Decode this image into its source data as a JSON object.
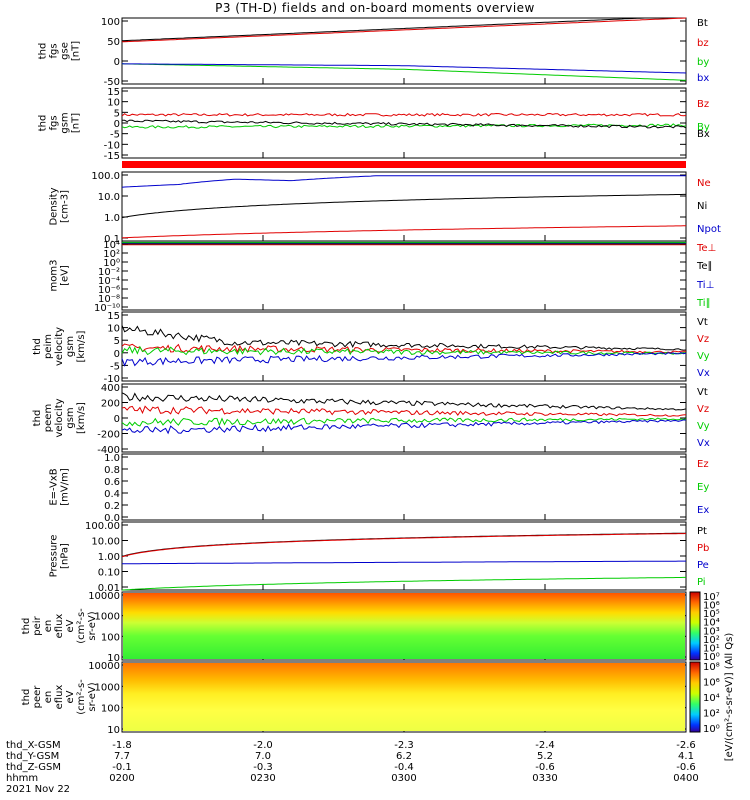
{
  "title": "P3 (TH-D) fields and on-board moments overview",
  "colors": {
    "black": "#000000",
    "red": "#e00000",
    "green": "#00cc00",
    "blue": "#0000cc",
    "band": "#ff0000"
  },
  "chart_data": [
    {
      "type": "line",
      "ylabel": [
        "thd",
        "fgs",
        "gse",
        "[nT]"
      ],
      "yticks": [
        "100",
        "50",
        "0",
        "-50"
      ],
      "ylim": [
        -80,
        100
      ],
      "series": [
        {
          "name": "Bt",
          "color": "#000000",
          "x": [
            0,
            1
          ],
          "y": [
            38,
            105
          ]
        },
        {
          "name": "bz",
          "color": "#e00000",
          "x": [
            0,
            1
          ],
          "y": [
            35,
            100
          ]
        },
        {
          "name": "by",
          "color": "#00cc00",
          "x": [
            0,
            0.5,
            1
          ],
          "y": [
            -25,
            -40,
            -70
          ]
        },
        {
          "name": "bx",
          "color": "#0000cc",
          "x": [
            0,
            0.5,
            1
          ],
          "y": [
            -25,
            -30,
            -50
          ]
        }
      ]
    },
    {
      "type": "line",
      "ylabel": [
        "thd",
        "fgs",
        "gsm",
        "[nT]"
      ],
      "yticks": [
        "15",
        "10",
        "5",
        "0",
        "-5",
        "-10",
        "-15"
      ],
      "ylim": [
        -18,
        16
      ],
      "series": [
        {
          "name": "Bz",
          "color": "#e00000",
          "x": [
            0,
            1
          ],
          "y": [
            3,
            3
          ]
        },
        {
          "name": "By",
          "color": "#00cc00",
          "x": [
            0,
            1
          ],
          "y": [
            -3,
            -2
          ]
        },
        {
          "name": "Bx",
          "color": "#000000",
          "x": [
            0,
            1
          ],
          "y": [
            0,
            -3
          ]
        }
      ]
    },
    {
      "type": "line",
      "ylabel": [
        "Density",
        "[cm-3]"
      ],
      "yticks": [
        "100.0",
        "10.0",
        "1.0",
        "0.1"
      ],
      "ylim": [
        0.1,
        150
      ],
      "log": true,
      "series": [
        {
          "name": "Ne",
          "color": "#e00000",
          "x": [
            0,
            1
          ],
          "y": [
            0.14,
            0.5
          ]
        },
        {
          "name": "Ni",
          "color": "#000000",
          "x": [
            0,
            1
          ],
          "y": [
            1.2,
            14
          ]
        },
        {
          "name": "Npot",
          "color": "#0000cc",
          "x": [
            0,
            0.1,
            0.2,
            0.3,
            0.45
          ],
          "y": [
            30,
            40,
            70,
            60,
            100
          ]
        }
      ]
    },
    {
      "type": "line",
      "ylabel": [
        "mom3",
        "[eV]"
      ],
      "yticks": [
        "10⁴",
        "10²",
        "10⁰",
        "10⁻²",
        "10⁻⁴",
        "10⁻⁶",
        "10⁻⁸",
        "10⁻¹⁰"
      ],
      "ylim": [
        -10,
        4.5
      ],
      "series": [
        {
          "name": "Te⊥",
          "color": "#e00000",
          "x": [
            0,
            1
          ],
          "y": [
            3.7,
            3.7
          ]
        },
        {
          "name": "Te∥",
          "color": "#000000",
          "x": [
            0,
            1
          ],
          "y": [
            3.9,
            3.9
          ]
        },
        {
          "name": "Ti⊥",
          "color": "#0000cc",
          "x": [
            0,
            1
          ],
          "y": [
            4.1,
            4.1
          ]
        },
        {
          "name": "Ti∥",
          "color": "#00cc00",
          "x": [
            0,
            1
          ],
          "y": [
            4.2,
            4.2
          ]
        }
      ]
    },
    {
      "type": "line",
      "ylabel": [
        "thd",
        "peim",
        "velocity",
        "gsm",
        "[km/s]"
      ],
      "yticks": [
        "15",
        "10",
        "5",
        "0",
        "-5",
        "-10"
      ],
      "ylim": [
        -10,
        15
      ],
      "series": [
        {
          "name": "Vt",
          "color": "#000000",
          "x": [
            0,
            0.2,
            1
          ],
          "y": [
            9,
            4,
            1.5
          ]
        },
        {
          "name": "Vz",
          "color": "#e00000",
          "x": [
            0,
            1
          ],
          "y": [
            2,
            0.5
          ]
        },
        {
          "name": "Vy",
          "color": "#00cc00",
          "x": [
            0,
            1
          ],
          "y": [
            1,
            0
          ]
        },
        {
          "name": "Vx",
          "color": "#0000cc",
          "x": [
            0,
            1
          ],
          "y": [
            -3,
            0
          ]
        }
      ]
    },
    {
      "type": "line",
      "ylabel": [
        "thd",
        "peem",
        "velocity",
        "gsm",
        "[km/s]"
      ],
      "yticks": [
        "400",
        "200",
        "0",
        "-200",
        "-400"
      ],
      "ylim": [
        -400,
        400
      ],
      "series": [
        {
          "name": "Vt",
          "color": "#000000",
          "x": [
            0,
            1
          ],
          "y": [
            250,
            100
          ]
        },
        {
          "name": "Vz",
          "color": "#e00000",
          "x": [
            0,
            1
          ],
          "y": [
            100,
            30
          ]
        },
        {
          "name": "Vy",
          "color": "#00cc00",
          "x": [
            0,
            1
          ],
          "y": [
            -50,
            -10
          ]
        },
        {
          "name": "Vx",
          "color": "#0000cc",
          "x": [
            0,
            1
          ],
          "y": [
            -150,
            -30
          ]
        }
      ]
    },
    {
      "type": "line",
      "ylabel": [
        "E=-VxB",
        "[mV/m]"
      ],
      "yticks": [
        "1.0",
        "0.8",
        "0.6",
        "0.4",
        "0.2",
        "0.0"
      ],
      "ylim": [
        0,
        1
      ],
      "series": [
        {
          "name": "Ez",
          "color": "#e00000",
          "x": [],
          "y": []
        },
        {
          "name": "Ey",
          "color": "#00cc00",
          "x": [],
          "y": []
        },
        {
          "name": "Ex",
          "color": "#0000cc",
          "x": [],
          "y": []
        }
      ]
    },
    {
      "type": "line",
      "ylabel": [
        "Pressure",
        "[nPa]"
      ],
      "yticks": [
        "100.00",
        "10.00",
        "1.00",
        "0.10",
        "0.01"
      ],
      "ylim": [
        0.01,
        100
      ],
      "log": true,
      "series": [
        {
          "name": "Pt",
          "color": "#000000",
          "x": [
            0,
            1
          ],
          "y": [
            0.95,
            22
          ]
        },
        {
          "name": "Pb",
          "color": "#e00000",
          "x": [
            0,
            1
          ],
          "y": [
            0.9,
            21
          ]
        },
        {
          "name": "Pe",
          "color": "#0000cc",
          "x": [
            0,
            1
          ],
          "y": [
            0.35,
            0.5
          ]
        },
        {
          "name": "Pi",
          "color": "#00cc00",
          "x": [
            0,
            1
          ],
          "y": [
            0.01,
            0.055
          ]
        }
      ]
    },
    {
      "type": "heatmap",
      "ylabel": [
        "thd",
        "peir",
        "en",
        "eflux",
        "eV",
        "(cm²-s-",
        "sr-eV)"
      ],
      "yticks": [
        "10000",
        "1000",
        "100",
        "10"
      ],
      "colorbar": {
        "ticks": [
          "10⁷",
          "10⁶",
          "10⁵",
          "10⁴",
          "10³",
          "10²",
          "10¹",
          "10⁰"
        ]
      }
    },
    {
      "type": "heatmap",
      "ylabel": [
        "thd",
        "peer",
        "en",
        "eflux",
        "eV",
        "(cm²-s-",
        "sr-eV)"
      ],
      "yticks": [
        "10000",
        "1000",
        "100",
        "10"
      ],
      "colorbar": {
        "ticks": [
          "10⁸",
          "10⁶",
          "10⁴",
          "10²",
          "10⁰"
        ]
      }
    }
  ],
  "colorbar_title": "[eV/(cm²-s-sr-eV)] (All Qs)",
  "xaxis": {
    "row_labels": [
      "thd_X-GSM",
      "thd_Y-GSM",
      "thd_Z-GSM",
      "hhmm",
      "2021 Nov 22"
    ],
    "columns": [
      [
        "-1.8",
        "7.7",
        "-0.1",
        "0200"
      ],
      [
        "-2.0",
        "7.0",
        "-0.3",
        "0230"
      ],
      [
        "-2.3",
        "6.2",
        "-0.4",
        "0300"
      ],
      [
        "-2.4",
        "5.2",
        "-0.6",
        "0330"
      ],
      [
        "-2.6",
        "4.1",
        "-0.6",
        "0400"
      ]
    ]
  }
}
